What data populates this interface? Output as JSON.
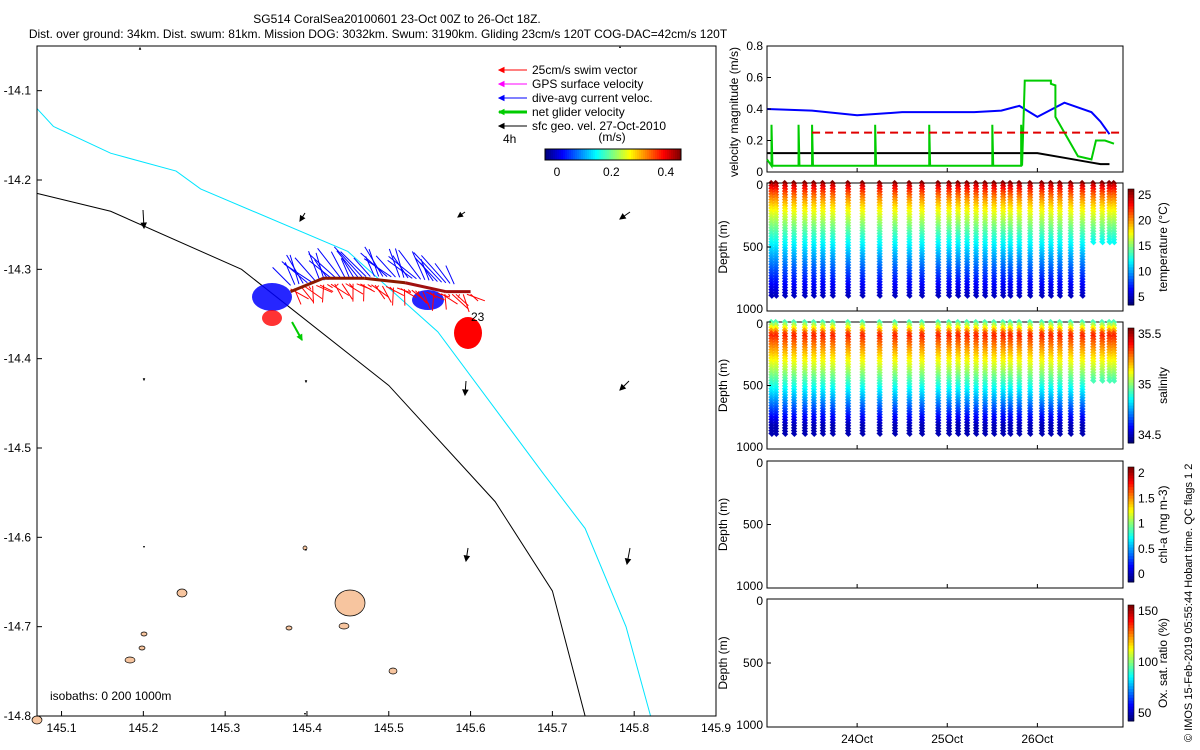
{
  "colors": {
    "swim_vector": "#ff0000",
    "gps_surface_velocity": "#ff00ff",
    "dive_avg_current": "#0000ff",
    "net_glider_velocity": "#00cc00",
    "sfc_geo_velocity": "#000000",
    "isobath_200": "#00e5ff",
    "isobath_1000": "#000000",
    "reef": "#f7c59f",
    "threshold_dashed": "#e00000"
  },
  "header": {
    "title_line1": "SG514 CoralSea20100601 23-Oct 00Z to 26-Oct 18Z.",
    "title_line2": "Dist. over ground: 34km. Dist. swum: 81km. Mission DOG: 3032km. Swum: 3190km. Gliding 23cm/s 120T COG-DAC=42cm/s 120T"
  },
  "map": {
    "x_ticks": [
      "145.1",
      "145.2",
      "145.3",
      "145.4",
      "145.5",
      "145.6",
      "145.7",
      "145.8",
      "145.9"
    ],
    "y_ticks": [
      "-14.1",
      "-14.2",
      "-14.3",
      "-14.4",
      "-14.5",
      "-14.6",
      "-14.7",
      "-14.8"
    ],
    "legend": [
      {
        "label": "25cm/s swim vector",
        "icon": "red-arrow"
      },
      {
        "label": "GPS surface velocity",
        "icon": "magenta-arrow"
      },
      {
        "label": "dive-avg current veloc.",
        "icon": "blue-arrow"
      },
      {
        "label": "net glider velocity",
        "icon": "green-arrow"
      },
      {
        "label": "sfc geo. vel. 27-Oct-2010",
        "icon": "black-arrow"
      }
    ],
    "legend_extra": "4h",
    "colorbar_title": "(m/s)",
    "colorbar_ticks": [
      "0",
      "0.2",
      "0.4"
    ],
    "isobath_note": "isobaths: 0   200  1000m",
    "track_labels": [
      "23"
    ]
  },
  "panels": {
    "velocity": {
      "ylabel": "velocity magnitude (m/s)",
      "y_ticks": [
        "0",
        "0.2",
        "0.4",
        "0.6",
        "0.8"
      ]
    },
    "temperature": {
      "ylabel": "Depth (m)",
      "y_ticks": [
        "0",
        "500",
        "1000"
      ],
      "colorbar_label": "temperature (°C)",
      "colorbar_ticks": [
        "5",
        "10",
        "15",
        "20",
        "25"
      ]
    },
    "salinity": {
      "ylabel": "Depth (m)",
      "y_ticks": [
        "0",
        "500",
        "1000"
      ],
      "colorbar_label": "salinity",
      "colorbar_ticks": [
        "34.5",
        "35",
        "35.5"
      ]
    },
    "chla": {
      "ylabel": "Depth (m)",
      "y_ticks": [
        "0",
        "500",
        "1000"
      ],
      "colorbar_label": "chl-a (mg m-3)",
      "colorbar_ticks": [
        "0",
        "0.5",
        "1",
        "1.5",
        "2"
      ]
    },
    "oxygen": {
      "ylabel": "Depth (m)",
      "y_ticks": [
        "0",
        "500",
        "1000"
      ],
      "colorbar_label": "Ox. sat. ratio (%)",
      "colorbar_ticks": [
        "50",
        "100",
        "150"
      ]
    },
    "x_ticks": [
      "24Oct",
      "25Oct",
      "26Oct"
    ]
  },
  "footer": {
    "credit": "© IMOS 15-Feb-2019 05:55:44 Hobart time. QC flags 1 2"
  },
  "chart_data": [
    {
      "type": "scatter",
      "title": "SG514 CoralSea20100601 23-Oct 00Z to 26-Oct 18Z.",
      "xlim": [
        145.07,
        145.9
      ],
      "ylim": [
        -14.8,
        -14.05
      ],
      "glider_track": {
        "x": [
          145.38,
          145.42,
          145.47,
          145.52,
          145.57,
          145.6
        ],
        "y": [
          -14.325,
          -14.31,
          -14.31,
          -14.315,
          -14.325,
          -14.325
        ]
      },
      "isobath_200m": {
        "x": [
          145.07,
          145.09,
          145.16,
          145.24,
          145.27,
          145.45,
          145.56,
          145.69,
          145.74,
          145.79,
          145.82
        ],
        "y": [
          -14.12,
          -14.14,
          -14.17,
          -14.19,
          -14.21,
          -14.28,
          -14.37,
          -14.53,
          -14.59,
          -14.7,
          -14.8
        ]
      },
      "isobath_1000m": {
        "x": [
          145.07,
          145.16,
          145.32,
          145.5,
          145.63,
          145.7,
          145.74
        ],
        "y": [
          -14.215,
          -14.235,
          -14.3,
          -14.43,
          -14.56,
          -14.66,
          -14.8
        ]
      }
    },
    {
      "type": "line",
      "ylabel": "velocity magnitude (m/s)",
      "ylim": [
        0,
        0.8
      ],
      "x": [
        23.0,
        23.5,
        24.0,
        24.5,
        25.0,
        25.3,
        25.6,
        25.8,
        26.0,
        26.3,
        26.6,
        26.7,
        26.8
      ],
      "series": [
        {
          "values": [
            0.4,
            0.39,
            0.36,
            0.38,
            0.38,
            0.38,
            0.39,
            0.42,
            0.35,
            0.44,
            0.38,
            0.32,
            0.24
          ]
        },
        {
          "values": [
            0.12,
            0.12,
            0.12,
            0.12,
            0.12,
            0.12,
            0.12,
            0.12,
            0.12,
            0.09,
            0.06,
            0.05,
            0.05
          ]
        },
        {
          "values": [
            0.04,
            0.03,
            0.03,
            0.03,
            0.03,
            0.03,
            0.03,
            0.03,
            0.58,
            0.45,
            0.1,
            0.1,
            0.17
          ]
        },
        {
          "values": [
            0.25,
            0.25,
            0.25,
            0.25,
            0.25,
            0.25,
            0.25,
            0.25,
            0.25,
            0.25,
            0.25,
            0.25,
            0.25
          ]
        }
      ]
    },
    {
      "type": "scatter",
      "ylabel": "Depth (m)",
      "colorbar": "temperature (°C)",
      "ylim": [
        1000,
        0
      ],
      "dive_times": [
        23.05,
        23.1,
        23.2,
        23.3,
        23.42,
        23.52,
        23.62,
        23.73,
        23.9,
        24.06,
        24.25,
        24.42,
        24.58,
        24.72,
        24.9,
        25.02,
        25.12,
        25.22,
        25.32,
        25.42,
        25.52,
        25.62,
        25.7,
        25.8,
        25.92,
        26.05,
        26.15,
        26.25,
        26.37,
        26.5,
        26.62,
        26.72,
        26.8,
        26.85
      ],
      "max_depth_m": 920
    },
    {
      "type": "scatter",
      "ylabel": "Depth (m)",
      "colorbar": "salinity",
      "ylim": [
        1000,
        0
      ],
      "max_depth_m": 920
    }
  ]
}
